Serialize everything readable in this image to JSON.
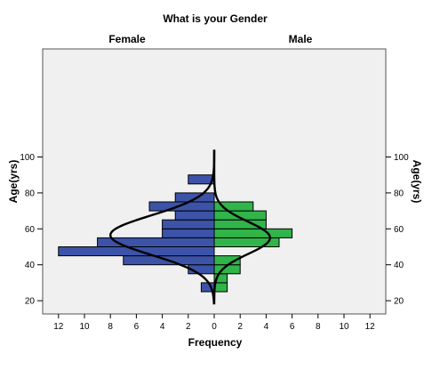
{
  "chart_data": {
    "type": "bar",
    "subtype": "population-pyramid-histogram",
    "title": "What is your Gender",
    "left_panel_label": "Female",
    "right_panel_label": "Male",
    "xlabel": "Frequency",
    "ylabel_left": "Age(yrs)",
    "ylabel_right": "Age(yrs)",
    "xlim": [
      0,
      12
    ],
    "xticks": [
      0,
      2,
      4,
      6,
      8,
      10,
      12
    ],
    "ylim": [
      18,
      104
    ],
    "yticks": [
      20,
      40,
      60,
      80,
      100
    ],
    "bin_width": 5,
    "bins": [
      {
        "age_from": 25,
        "age_to": 30,
        "female": 1,
        "male": 1
      },
      {
        "age_from": 30,
        "age_to": 35,
        "female": 0,
        "male": 1
      },
      {
        "age_from": 35,
        "age_to": 40,
        "female": 2,
        "male": 2
      },
      {
        "age_from": 40,
        "age_to": 45,
        "female": 7,
        "male": 2
      },
      {
        "age_from": 45,
        "age_to": 50,
        "female": 12,
        "male": 0
      },
      {
        "age_from": 50,
        "age_to": 55,
        "female": 9,
        "male": 5
      },
      {
        "age_from": 55,
        "age_to": 60,
        "female": 4,
        "male": 6
      },
      {
        "age_from": 60,
        "age_to": 65,
        "female": 4,
        "male": 4
      },
      {
        "age_from": 65,
        "age_to": 70,
        "female": 3,
        "male": 4
      },
      {
        "age_from": 70,
        "age_to": 75,
        "female": 5,
        "male": 3
      },
      {
        "age_from": 75,
        "age_to": 80,
        "female": 3,
        "male": 0
      },
      {
        "age_from": 85,
        "age_to": 90,
        "female": 2,
        "male": 0
      }
    ],
    "normal_curves": [
      {
        "side": "female",
        "peak": 8.0,
        "mean": 56.5,
        "sd": 11.0
      },
      {
        "side": "male",
        "peak": 4.3,
        "mean": 55.0,
        "sd": 9.0
      }
    ],
    "grid": false,
    "colors": {
      "female": "#3c53a8",
      "male": "#31b44a",
      "bar_edge": "#000000",
      "curve": "#000000",
      "plot_bg": "#f0f0f0"
    }
  }
}
